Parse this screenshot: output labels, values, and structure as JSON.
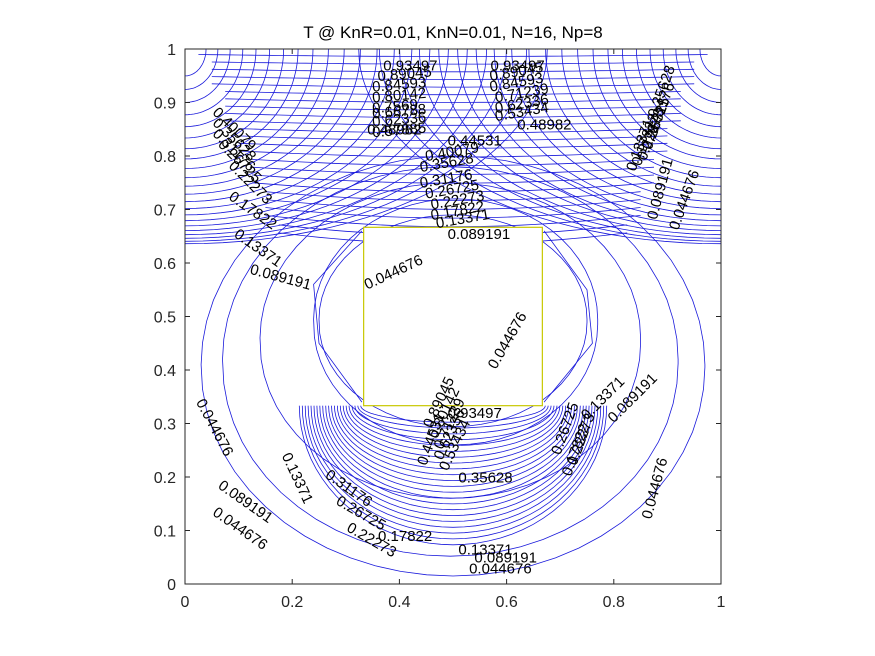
{
  "chart_data": {
    "type": "contour",
    "title": "T @ KnR=0.01, KnN=0.01, N=16, Np=8",
    "xlabel": "",
    "ylabel": "",
    "xlim": [
      0,
      1
    ],
    "ylim": [
      0,
      1
    ],
    "x_ticks": [
      0,
      0.2,
      0.4,
      0.6,
      0.8,
      1
    ],
    "x_tick_labels": [
      "0",
      "0.2",
      "0.4",
      "0.6",
      "0.8",
      "1"
    ],
    "y_ticks": [
      0,
      0.1,
      0.2,
      0.3,
      0.4,
      0.5,
      0.6,
      0.7,
      0.8,
      0.9,
      1
    ],
    "y_tick_labels": [
      "0",
      "0.1",
      "0.2",
      "0.3",
      "0.4",
      "0.5",
      "0.6",
      "0.7",
      "0.8",
      "0.9",
      "1"
    ],
    "line_color": "#1a1adb",
    "box_color": "#c8c800",
    "inner_box": {
      "x": [
        0.3333,
        0.6667
      ],
      "y": [
        0.3333,
        0.6667
      ]
    },
    "levels": [
      0.044676,
      0.089191,
      0.13371,
      0.17822,
      0.22273,
      0.26725,
      0.31176,
      0.35628,
      0.40079,
      0.44531,
      0.48982,
      0.53434,
      0.57885,
      0.62336,
      0.66788,
      0.71239,
      0.7569,
      0.80142,
      0.84593,
      0.89045,
      0.93497
    ],
    "contour_labels": [
      {
        "text": "0.044676",
        "x": 0.34,
        "y": 0.55,
        "rot": -25
      },
      {
        "text": "0.044676",
        "x": 0.58,
        "y": 0.4,
        "rot": -60
      },
      {
        "text": "0.044676",
        "x": 0.02,
        "y": 0.34,
        "rot": 62
      },
      {
        "text": "0.044676",
        "x": 0.53,
        "y": 0.02,
        "rot": 0
      },
      {
        "text": "0.044676",
        "x": 0.05,
        "y": 0.13,
        "rot": 35
      },
      {
        "text": "0.044676",
        "x": 0.87,
        "y": 0.12,
        "rot": -75
      },
      {
        "text": "0.044676",
        "x": 0.92,
        "y": 0.66,
        "rot": -70
      },
      {
        "text": "0.089191",
        "x": 0.12,
        "y": 0.58,
        "rot": 15
      },
      {
        "text": "0.089191",
        "x": 0.06,
        "y": 0.18,
        "rot": 35
      },
      {
        "text": "0.089191",
        "x": 0.54,
        "y": 0.04,
        "rot": 0
      },
      {
        "text": "0.089191",
        "x": 0.49,
        "y": 0.645,
        "rot": 0
      },
      {
        "text": "0.089191",
        "x": 0.8,
        "y": 0.3,
        "rot": -45
      },
      {
        "text": "0.089191",
        "x": 0.88,
        "y": 0.68,
        "rot": -75
      },
      {
        "text": "0.13371",
        "x": 0.09,
        "y": 0.65,
        "rot": 35
      },
      {
        "text": "0.13371",
        "x": 0.18,
        "y": 0.24,
        "rot": 65
      },
      {
        "text": "0.13371",
        "x": 0.51,
        "y": 0.055,
        "rot": 0
      },
      {
        "text": "0.13371",
        "x": 0.75,
        "y": 0.305,
        "rot": -45
      },
      {
        "text": "0.17822",
        "x": 0.08,
        "y": 0.72,
        "rot": 35
      },
      {
        "text": "0.17822",
        "x": 0.36,
        "y": 0.08,
        "rot": 0
      },
      {
        "text": "0.17822",
        "x": 0.72,
        "y": 0.2,
        "rot": -70
      },
      {
        "text": "0.22273",
        "x": 0.3,
        "y": 0.1,
        "rot": 30
      },
      {
        "text": "0.22273",
        "x": 0.73,
        "y": 0.22,
        "rot": -70
      },
      {
        "text": "0.26725",
        "x": 0.28,
        "y": 0.15,
        "rot": 30
      },
      {
        "text": "0.26725",
        "x": 0.7,
        "y": 0.24,
        "rot": -70
      },
      {
        "text": "0.31176",
        "x": 0.26,
        "y": 0.2,
        "rot": 35
      },
      {
        "text": "0.35628",
        "x": 0.51,
        "y": 0.19,
        "rot": 0
      },
      {
        "text": "0.44531",
        "x": 0.49,
        "y": 0.82,
        "rot": 0
      },
      {
        "text": "0.48982",
        "x": 0.34,
        "y": 0.84,
        "rot": 0
      },
      {
        "text": "0.48982",
        "x": 0.62,
        "y": 0.85,
        "rot": 0
      },
      {
        "text": "0.93497",
        "x": 0.37,
        "y": 0.96,
        "rot": 0
      },
      {
        "text": "0.93497",
        "x": 0.57,
        "y": 0.96,
        "rot": 0
      },
      {
        "text": "0.93497",
        "x": 0.49,
        "y": 0.31,
        "rot": 0
      },
      {
        "text": "0.89045",
        "x": 0.36,
        "y": 0.94,
        "rot": -5
      },
      {
        "text": "0.84593",
        "x": 0.35,
        "y": 0.92,
        "rot": -5
      },
      {
        "text": "0.80142",
        "x": 0.35,
        "y": 0.9,
        "rot": -5
      },
      {
        "text": "0.7569",
        "x": 0.35,
        "y": 0.88,
        "rot": -5
      },
      {
        "text": "0.66788",
        "x": 0.35,
        "y": 0.87,
        "rot": -5
      },
      {
        "text": "0.62336",
        "x": 0.35,
        "y": 0.855,
        "rot": -5
      },
      {
        "text": "0.57885",
        "x": 0.35,
        "y": 0.835,
        "rot": -5
      },
      {
        "text": "0.89045",
        "x": 0.57,
        "y": 0.94,
        "rot": -10
      },
      {
        "text": "0.84593",
        "x": 0.57,
        "y": 0.92,
        "rot": -10
      },
      {
        "text": "0.71239",
        "x": 0.58,
        "y": 0.9,
        "rot": -10
      },
      {
        "text": "0.62336",
        "x": 0.58,
        "y": 0.88,
        "rot": -10
      },
      {
        "text": "0.53434",
        "x": 0.58,
        "y": 0.865,
        "rot": -10
      },
      {
        "text": "0.40079",
        "x": 0.45,
        "y": 0.79,
        "rot": -10
      },
      {
        "text": "0.35628",
        "x": 0.44,
        "y": 0.77,
        "rot": -10
      },
      {
        "text": "0.31176",
        "x": 0.44,
        "y": 0.74,
        "rot": -10
      },
      {
        "text": "0.26725",
        "x": 0.45,
        "y": 0.72,
        "rot": -10
      },
      {
        "text": "0.22273",
        "x": 0.46,
        "y": 0.7,
        "rot": -10
      },
      {
        "text": "0.17822",
        "x": 0.46,
        "y": 0.68,
        "rot": -10
      },
      {
        "text": "0.13371",
        "x": 0.47,
        "y": 0.665,
        "rot": -10
      },
      {
        "text": "0.89045",
        "x": 0.46,
        "y": 0.29,
        "rot": -65
      },
      {
        "text": "0.80142",
        "x": 0.47,
        "y": 0.27,
        "rot": -65
      },
      {
        "text": "0.71239",
        "x": 0.48,
        "y": 0.25,
        "rot": -65
      },
      {
        "text": "0.62336",
        "x": 0.48,
        "y": 0.23,
        "rot": -65
      },
      {
        "text": "0.53434",
        "x": 0.49,
        "y": 0.21,
        "rot": -65
      },
      {
        "text": "0.44531",
        "x": 0.45,
        "y": 0.22,
        "rot": -70
      },
      {
        "text": "0.40079",
        "x": 0.05,
        "y": 0.88,
        "rot": 45
      },
      {
        "text": "0.35628",
        "x": 0.05,
        "y": 0.86,
        "rot": 45
      },
      {
        "text": "0.31176",
        "x": 0.05,
        "y": 0.84,
        "rot": 45
      },
      {
        "text": "0.26725",
        "x": 0.06,
        "y": 0.82,
        "rot": 45
      },
      {
        "text": "0.22273",
        "x": 0.08,
        "y": 0.78,
        "rot": 45
      },
      {
        "text": "0.35628",
        "x": 0.88,
        "y": 0.87,
        "rot": -70
      },
      {
        "text": "0.31176",
        "x": 0.88,
        "y": 0.84,
        "rot": -70
      },
      {
        "text": "0.26725",
        "x": 0.87,
        "y": 0.81,
        "rot": -70
      },
      {
        "text": "0.22273",
        "x": 0.86,
        "y": 0.79,
        "rot": -70
      },
      {
        "text": "0.17822",
        "x": 0.85,
        "y": 0.78,
        "rot": -70
      },
      {
        "text": "0.13371",
        "x": 0.84,
        "y": 0.77,
        "rot": -70
      }
    ]
  }
}
